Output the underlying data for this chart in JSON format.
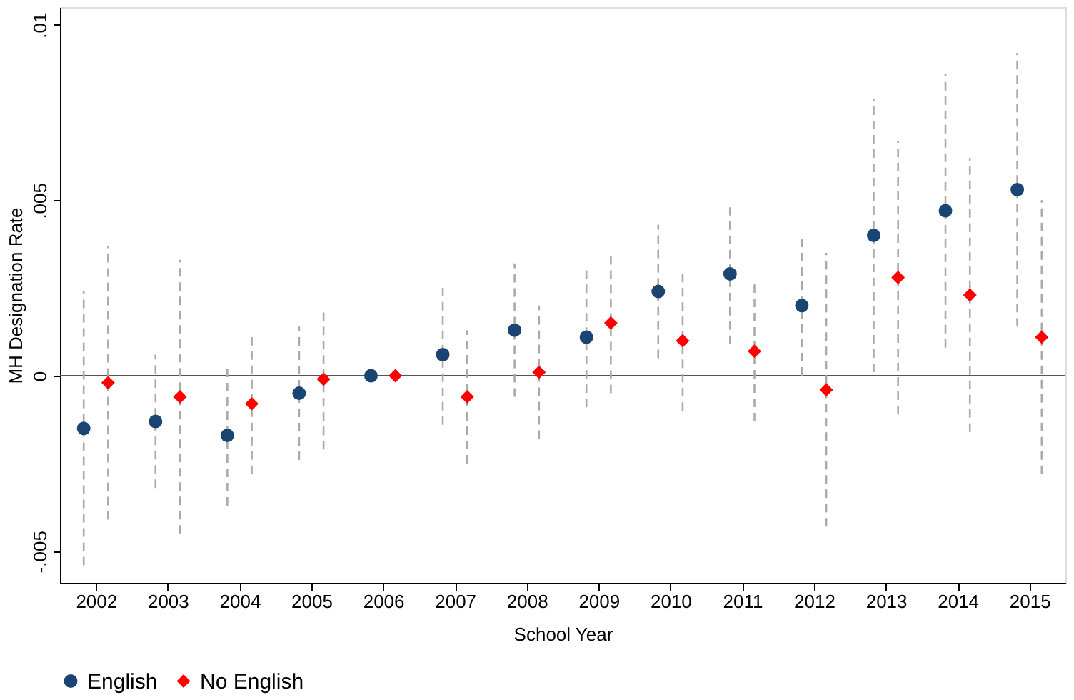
{
  "chart_data": {
    "type": "scatter",
    "xlabel": "School Year",
    "ylabel": "MH Designation Rate",
    "xlim": [
      2001.5,
      2015.5
    ],
    "xticks": [
      2002,
      2003,
      2004,
      2005,
      2006,
      2007,
      2008,
      2009,
      2010,
      2011,
      2012,
      2013,
      2014,
      2015
    ],
    "ylim": [
      -0.0059,
      0.0105
    ],
    "yticks": [
      {
        "value": -0.005,
        "label": "-.005"
      },
      0,
      {
        "value": 0.005,
        "label": ".005"
      },
      {
        "value": 0.01,
        "label": ".01"
      }
    ],
    "grid": false,
    "legend": "bottom",
    "ref_lines": [
      {
        "axis": "y",
        "value": 0,
        "label": null,
        "color": "#555555",
        "line_style": "solid"
      }
    ],
    "series": [
      {
        "name": "English",
        "color": "#1a4472",
        "marker": "circle",
        "x": [
          2001.83,
          2002.83,
          2003.83,
          2004.83,
          2005.83,
          2006.83,
          2007.83,
          2008.83,
          2009.83,
          2010.83,
          2011.83,
          2012.83,
          2013.83,
          2014.83
        ],
        "values": [
          -0.0015,
          -0.0013,
          -0.0017,
          -0.0005,
          0,
          0.0006,
          0.0013,
          0.0011,
          0.0024,
          0.0029,
          0.002,
          0.004,
          0.0047,
          0.0053
        ],
        "errors": [
          [
            -0.0054,
            0.0024
          ],
          [
            -0.0032,
            0.0006
          ],
          [
            -0.0037,
            0.0002
          ],
          [
            -0.0024,
            0.0014
          ],
          null,
          [
            -0.0014,
            0.0025
          ],
          [
            -0.0006,
            0.0032
          ],
          [
            -0.0009,
            0.003
          ],
          [
            0.0005,
            0.0043
          ],
          [
            0.0009,
            0.0048
          ],
          [
            0.0,
            0.0039
          ],
          [
            0.0001,
            0.0079
          ],
          [
            0.0008,
            0.0086
          ],
          [
            0.0014,
            0.0092
          ]
        ]
      },
      {
        "name": "No English",
        "color": "#ff0000",
        "marker": "diamond",
        "x": [
          2002.17,
          2003.17,
          2004.17,
          2005.17,
          2006.17,
          2007.17,
          2008.17,
          2009.17,
          2010.17,
          2011.17,
          2012.17,
          2013.17,
          2014.17,
          2015.17
        ],
        "values": [
          -0.0002,
          -0.0006,
          -0.0008,
          -0.0001,
          0,
          -0.0006,
          0.0001,
          0.0015,
          0.001,
          0.0007,
          -0.0004,
          0.0028,
          0.0023,
          0.0011
        ],
        "errors": [
          [
            -0.0041,
            0.0037
          ],
          [
            -0.0045,
            0.0033
          ],
          [
            -0.0028,
            0.0011
          ],
          [
            -0.0021,
            0.0018
          ],
          null,
          [
            -0.0025,
            0.0013
          ],
          [
            -0.0018,
            0.002
          ],
          [
            -0.0005,
            0.0034
          ],
          [
            -0.001,
            0.0029
          ],
          [
            -0.0013,
            0.0026
          ],
          [
            -0.0043,
            0.0035
          ],
          [
            -0.0011,
            0.0067
          ],
          [
            -0.0016,
            0.0062
          ],
          [
            -0.0028,
            0.005
          ]
        ]
      }
    ]
  }
}
